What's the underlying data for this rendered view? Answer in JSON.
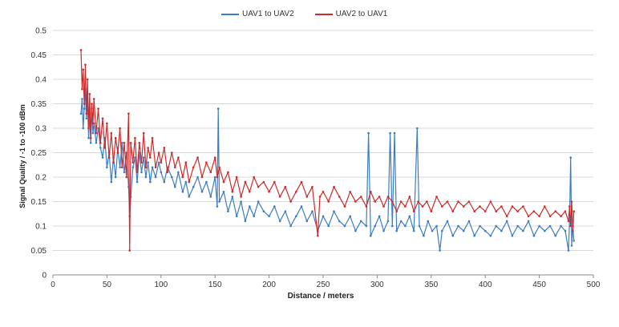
{
  "chart_data": {
    "type": "line",
    "title": "",
    "xlabel": "Distance / meters",
    "ylabel": "Signal Quality / -1 to -100 dBm",
    "xlim": [
      0,
      500
    ],
    "ylim": [
      0,
      0.5
    ],
    "x_ticks": [
      "0",
      "50",
      "100",
      "150",
      "200",
      "250",
      "300",
      "350",
      "400",
      "450",
      "500"
    ],
    "y_ticks": [
      "0",
      "0.05",
      "0.1",
      "0.15",
      "0.2",
      "0.25",
      "0.3",
      "0.35",
      "0.4",
      "0.45",
      "0.5"
    ],
    "grid": true,
    "legend_position": "top",
    "series": [
      {
        "name": "UAV1 to UAV2",
        "color": "#3b7dc4",
        "points": [
          [
            26,
            0.33
          ],
          [
            27,
            0.36
          ],
          [
            28,
            0.3
          ],
          [
            29,
            0.34
          ],
          [
            30,
            0.38
          ],
          [
            31,
            0.32
          ],
          [
            32,
            0.36
          ],
          [
            33,
            0.28
          ],
          [
            34,
            0.33
          ],
          [
            35,
            0.27
          ],
          [
            36,
            0.34
          ],
          [
            37,
            0.29
          ],
          [
            38,
            0.31
          ],
          [
            40,
            0.27
          ],
          [
            42,
            0.3
          ],
          [
            44,
            0.26
          ],
          [
            46,
            0.24
          ],
          [
            48,
            0.28
          ],
          [
            50,
            0.22
          ],
          [
            52,
            0.25
          ],
          [
            54,
            0.19
          ],
          [
            56,
            0.24
          ],
          [
            58,
            0.2
          ],
          [
            60,
            0.26
          ],
          [
            62,
            0.22
          ],
          [
            64,
            0.27
          ],
          [
            66,
            0.21
          ],
          [
            68,
            0.25
          ],
          [
            70,
            0.18
          ],
          [
            71,
            0.12
          ],
          [
            72,
            0.16
          ],
          [
            74,
            0.22
          ],
          [
            76,
            0.24
          ],
          [
            78,
            0.19
          ],
          [
            80,
            0.25
          ],
          [
            82,
            0.21
          ],
          [
            84,
            0.24
          ],
          [
            86,
            0.2
          ],
          [
            88,
            0.23
          ],
          [
            90,
            0.19
          ],
          [
            92,
            0.22
          ],
          [
            95,
            0.2
          ],
          [
            98,
            0.23
          ],
          [
            100,
            0.21
          ],
          [
            103,
            0.19
          ],
          [
            106,
            0.22
          ],
          [
            110,
            0.2
          ],
          [
            113,
            0.18
          ],
          [
            116,
            0.21
          ],
          [
            120,
            0.17
          ],
          [
            123,
            0.19
          ],
          [
            126,
            0.16
          ],
          [
            130,
            0.18
          ],
          [
            134,
            0.2
          ],
          [
            138,
            0.17
          ],
          [
            142,
            0.19
          ],
          [
            146,
            0.16
          ],
          [
            150,
            0.2
          ],
          [
            152,
            0.14
          ],
          [
            153,
            0.34
          ],
          [
            154,
            0.15
          ],
          [
            158,
            0.17
          ],
          [
            162,
            0.13
          ],
          [
            166,
            0.16
          ],
          [
            170,
            0.12
          ],
          [
            174,
            0.15
          ],
          [
            178,
            0.11
          ],
          [
            182,
            0.14
          ],
          [
            186,
            0.12
          ],
          [
            190,
            0.15
          ],
          [
            195,
            0.13
          ],
          [
            200,
            0.12
          ],
          [
            205,
            0.14
          ],
          [
            210,
            0.11
          ],
          [
            215,
            0.13
          ],
          [
            220,
            0.1
          ],
          [
            225,
            0.12
          ],
          [
            230,
            0.14
          ],
          [
            235,
            0.11
          ],
          [
            240,
            0.13
          ],
          [
            245,
            0.09
          ],
          [
            250,
            0.12
          ],
          [
            255,
            0.1
          ],
          [
            260,
            0.13
          ],
          [
            265,
            0.11
          ],
          [
            270,
            0.1
          ],
          [
            275,
            0.12
          ],
          [
            280,
            0.09
          ],
          [
            285,
            0.11
          ],
          [
            290,
            0.1
          ],
          [
            292,
            0.29
          ],
          [
            294,
            0.08
          ],
          [
            298,
            0.1
          ],
          [
            302,
            0.12
          ],
          [
            306,
            0.09
          ],
          [
            310,
            0.11
          ],
          [
            312,
            0.29
          ],
          [
            314,
            0.1
          ],
          [
            316,
            0.29
          ],
          [
            318,
            0.09
          ],
          [
            322,
            0.11
          ],
          [
            326,
            0.1
          ],
          [
            330,
            0.12
          ],
          [
            334,
            0.09
          ],
          [
            337,
            0.3
          ],
          [
            339,
            0.1
          ],
          [
            343,
            0.08
          ],
          [
            347,
            0.11
          ],
          [
            351,
            0.09
          ],
          [
            355,
            0.1
          ],
          [
            358,
            0.05
          ],
          [
            360,
            0.09
          ],
          [
            365,
            0.11
          ],
          [
            370,
            0.08
          ],
          [
            375,
            0.1
          ],
          [
            380,
            0.09
          ],
          [
            385,
            0.11
          ],
          [
            390,
            0.08
          ],
          [
            395,
            0.1
          ],
          [
            400,
            0.09
          ],
          [
            405,
            0.08
          ],
          [
            410,
            0.1
          ],
          [
            415,
            0.09
          ],
          [
            420,
            0.11
          ],
          [
            425,
            0.08
          ],
          [
            430,
            0.1
          ],
          [
            435,
            0.09
          ],
          [
            440,
            0.11
          ],
          [
            445,
            0.08
          ],
          [
            450,
            0.1
          ],
          [
            455,
            0.09
          ],
          [
            460,
            0.1
          ],
          [
            465,
            0.08
          ],
          [
            470,
            0.1
          ],
          [
            474,
            0.09
          ],
          [
            477,
            0.05
          ],
          [
            478,
            0.11
          ],
          [
            479,
            0.24
          ],
          [
            480,
            0.06
          ],
          [
            481,
            0.1
          ],
          [
            482,
            0.07
          ]
        ]
      },
      {
        "name": "UAV2 to UAV1",
        "color": "#d02a2a",
        "points": [
          [
            26,
            0.46
          ],
          [
            27,
            0.38
          ],
          [
            28,
            0.42
          ],
          [
            29,
            0.35
          ],
          [
            30,
            0.43
          ],
          [
            31,
            0.33
          ],
          [
            32,
            0.4
          ],
          [
            33,
            0.3
          ],
          [
            34,
            0.37
          ],
          [
            35,
            0.28
          ],
          [
            36,
            0.35
          ],
          [
            37,
            0.31
          ],
          [
            38,
            0.36
          ],
          [
            40,
            0.29
          ],
          [
            42,
            0.34
          ],
          [
            44,
            0.27
          ],
          [
            46,
            0.32
          ],
          [
            48,
            0.26
          ],
          [
            50,
            0.31
          ],
          [
            52,
            0.24
          ],
          [
            54,
            0.29
          ],
          [
            56,
            0.23
          ],
          [
            58,
            0.28
          ],
          [
            60,
            0.25
          ],
          [
            62,
            0.3
          ],
          [
            64,
            0.22
          ],
          [
            66,
            0.27
          ],
          [
            68,
            0.2
          ],
          [
            70,
            0.33
          ],
          [
            71,
            0.05
          ],
          [
            72,
            0.27
          ],
          [
            74,
            0.23
          ],
          [
            76,
            0.28
          ],
          [
            78,
            0.21
          ],
          [
            80,
            0.27
          ],
          [
            82,
            0.23
          ],
          [
            84,
            0.29
          ],
          [
            86,
            0.22
          ],
          [
            88,
            0.26
          ],
          [
            90,
            0.24
          ],
          [
            92,
            0.28
          ],
          [
            95,
            0.22
          ],
          [
            98,
            0.25
          ],
          [
            100,
            0.23
          ],
          [
            103,
            0.26
          ],
          [
            106,
            0.21
          ],
          [
            110,
            0.25
          ],
          [
            113,
            0.22
          ],
          [
            116,
            0.24
          ],
          [
            120,
            0.2
          ],
          [
            123,
            0.23
          ],
          [
            126,
            0.19
          ],
          [
            130,
            0.22
          ],
          [
            134,
            0.24
          ],
          [
            138,
            0.2
          ],
          [
            142,
            0.23
          ],
          [
            146,
            0.21
          ],
          [
            150,
            0.24
          ],
          [
            152,
            0.2
          ],
          [
            154,
            0.22
          ],
          [
            158,
            0.19
          ],
          [
            162,
            0.21
          ],
          [
            166,
            0.17
          ],
          [
            170,
            0.2
          ],
          [
            174,
            0.16
          ],
          [
            178,
            0.19
          ],
          [
            182,
            0.17
          ],
          [
            186,
            0.2
          ],
          [
            190,
            0.18
          ],
          [
            195,
            0.19
          ],
          [
            200,
            0.17
          ],
          [
            205,
            0.19
          ],
          [
            210,
            0.16
          ],
          [
            215,
            0.18
          ],
          [
            220,
            0.15
          ],
          [
            225,
            0.17
          ],
          [
            230,
            0.19
          ],
          [
            235,
            0.16
          ],
          [
            240,
            0.18
          ],
          [
            245,
            0.08
          ],
          [
            247,
            0.16
          ],
          [
            250,
            0.17
          ],
          [
            255,
            0.15
          ],
          [
            260,
            0.18
          ],
          [
            265,
            0.16
          ],
          [
            270,
            0.14
          ],
          [
            275,
            0.17
          ],
          [
            280,
            0.15
          ],
          [
            285,
            0.16
          ],
          [
            290,
            0.14
          ],
          [
            294,
            0.17
          ],
          [
            298,
            0.15
          ],
          [
            302,
            0.16
          ],
          [
            306,
            0.14
          ],
          [
            310,
            0.16
          ],
          [
            314,
            0.15
          ],
          [
            318,
            0.13
          ],
          [
            322,
            0.15
          ],
          [
            326,
            0.14
          ],
          [
            330,
            0.16
          ],
          [
            334,
            0.13
          ],
          [
            338,
            0.15
          ],
          [
            342,
            0.14
          ],
          [
            346,
            0.15
          ],
          [
            350,
            0.13
          ],
          [
            355,
            0.16
          ],
          [
            360,
            0.14
          ],
          [
            365,
            0.15
          ],
          [
            370,
            0.13
          ],
          [
            375,
            0.15
          ],
          [
            380,
            0.14
          ],
          [
            385,
            0.15
          ],
          [
            390,
            0.13
          ],
          [
            395,
            0.14
          ],
          [
            400,
            0.13
          ],
          [
            405,
            0.15
          ],
          [
            410,
            0.13
          ],
          [
            415,
            0.14
          ],
          [
            420,
            0.12
          ],
          [
            425,
            0.14
          ],
          [
            430,
            0.13
          ],
          [
            435,
            0.14
          ],
          [
            440,
            0.12
          ],
          [
            445,
            0.13
          ],
          [
            450,
            0.12
          ],
          [
            455,
            0.14
          ],
          [
            460,
            0.12
          ],
          [
            465,
            0.13
          ],
          [
            470,
            0.12
          ],
          [
            474,
            0.13
          ],
          [
            477,
            0.11
          ],
          [
            478,
            0.14
          ],
          [
            479,
            0.1
          ],
          [
            480,
            0.15
          ],
          [
            481,
            0.09
          ],
          [
            482,
            0.13
          ]
        ]
      }
    ]
  }
}
